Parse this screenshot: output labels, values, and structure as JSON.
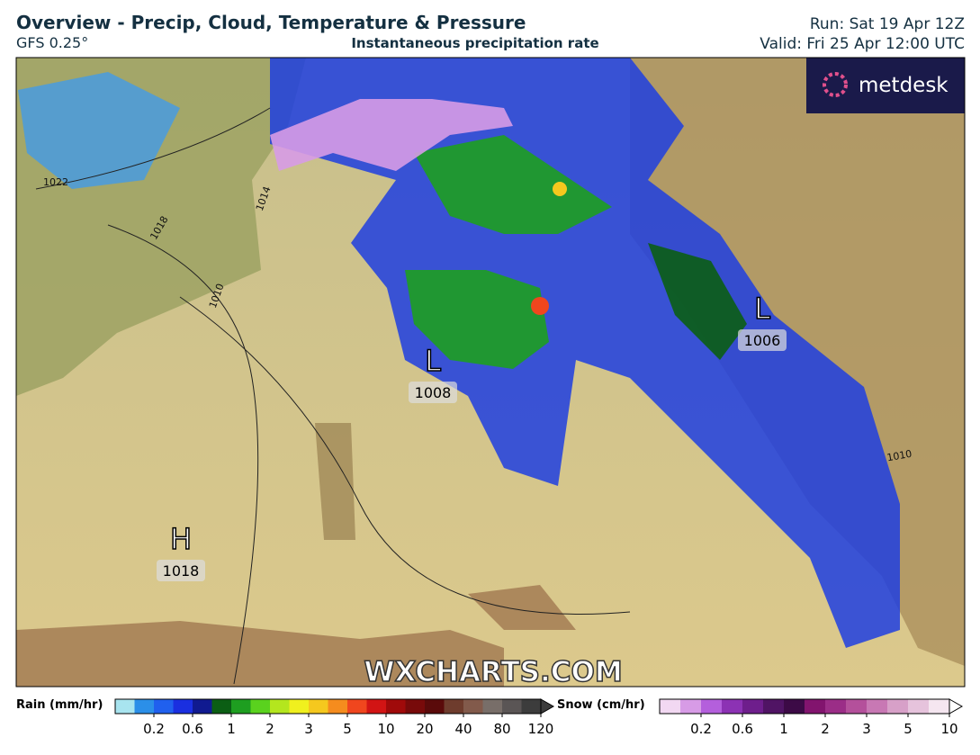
{
  "header": {
    "title": "Overview - Precip, Cloud, Temperature & Pressure",
    "model": "GFS 0.25°",
    "subtitle": "Instantaneous precipitation rate",
    "run": "Run: Sat 19 Apr 12Z",
    "valid": "Valid: Fri 25 Apr 12:00 UTC"
  },
  "logo": "metdesk",
  "watermark": "WXCHARTS.COM",
  "pressure_centers": [
    {
      "symbol": "L",
      "value": "1008"
    },
    {
      "symbol": "L",
      "value": "1006"
    },
    {
      "symbol": "H",
      "value": "1018"
    }
  ],
  "isobar_labels": [
    "1022",
    "1018",
    "1014",
    "1010",
    "1010"
  ],
  "legend": {
    "rain": {
      "label": "Rain (mm/hr)",
      "ticks": [
        "0.2",
        "0.6",
        "1",
        "2",
        "3",
        "5",
        "10",
        "20",
        "40",
        "80",
        "120"
      ],
      "colors": [
        "#a8e4ef",
        "#2b8fe8",
        "#2060ee",
        "#1a2fe0",
        "#101a90",
        "#0b5e14",
        "#1e9e20",
        "#5ad21e",
        "#b4e61e",
        "#f0f01e",
        "#f5c81e",
        "#f58c1e",
        "#f0461e",
        "#d21414",
        "#a00a0a",
        "#780a0a",
        "#5a0a0a",
        "#6e3c2d",
        "#825a4b",
        "#786e69",
        "#5a5555",
        "#3c3c3c"
      ]
    },
    "snow": {
      "label": "Snow (cm/hr)",
      "ticks": [
        "0.2",
        "0.6",
        "1",
        "2",
        "3",
        "5",
        "10"
      ],
      "colors": [
        "#f2d8f2",
        "#d79be6",
        "#b45fdc",
        "#8c32b4",
        "#6e1e8c",
        "#501464",
        "#3c0a46",
        "#82146e",
        "#9b2d87",
        "#b4509b",
        "#c878b4",
        "#d7a0c8",
        "#e6c3dc",
        "#f5e6f0"
      ]
    }
  }
}
